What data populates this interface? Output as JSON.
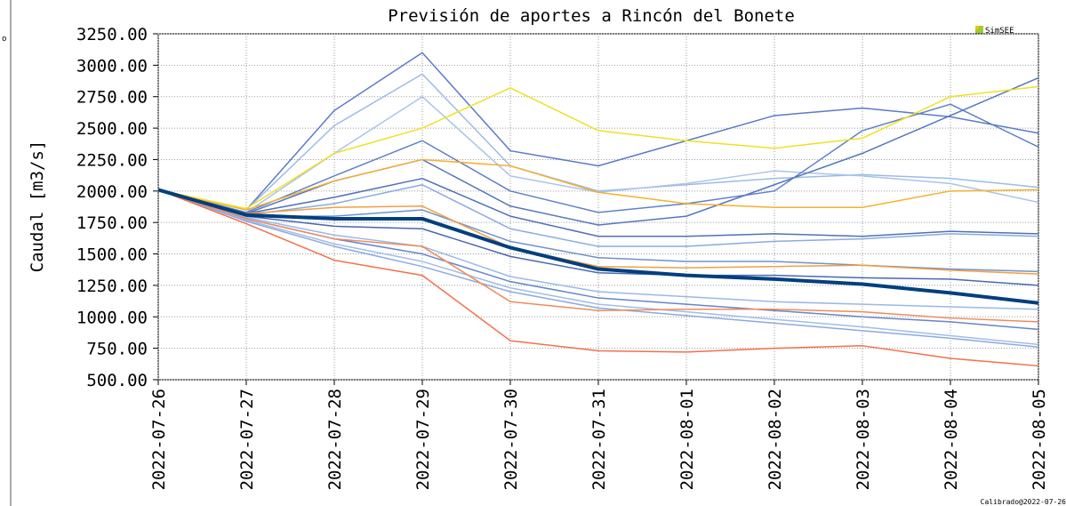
{
  "chart_data": {
    "type": "line",
    "title": "Previsión de aportes a Rincón del Bonete",
    "y_label": "Caudal [m3/s]",
    "logo": "SimSEE",
    "footnote": "Calibrado@2022-07-26",
    "side_text": "o",
    "grid": true,
    "categories": [
      "2022-07-26",
      "2022-07-27",
      "2022-07-28",
      "2022-07-29",
      "2022-07-30",
      "2022-07-31",
      "2022-08-01",
      "2022-08-02",
      "2022-08-03",
      "2022-08-04",
      "2022-08-05"
    ],
    "ylim": [
      500,
      3250
    ],
    "yticks": [
      {
        "value": 500,
        "label": "500.00"
      },
      {
        "value": 750,
        "label": "750.00"
      },
      {
        "value": 1000,
        "label": "1000.00"
      },
      {
        "value": 1250,
        "label": "1250.00"
      },
      {
        "value": 1500,
        "label": "1500.00"
      },
      {
        "value": 1750,
        "label": "1750.00"
      },
      {
        "value": 2000,
        "label": "2000.00"
      },
      {
        "value": 2250,
        "label": "2250.00"
      },
      {
        "value": 2500,
        "label": "2500.00"
      },
      {
        "value": 2750,
        "label": "2750.00"
      },
      {
        "value": 3000,
        "label": "3000.00"
      },
      {
        "value": 3250,
        "label": "3250.00"
      }
    ],
    "series": [
      {
        "color": "#5b7ac8",
        "values": [
          2010,
          1850,
          2640,
          3100,
          2320,
          2200,
          2400,
          2600,
          2660,
          2590,
          2460
        ]
      },
      {
        "color": "#9bbbe8",
        "values": [
          2010,
          1850,
          2520,
          2930,
          2200,
          2000,
          2050,
          2100,
          2130,
          2100,
          2030
        ]
      },
      {
        "color": "#a8c4ec",
        "values": [
          2010,
          1830,
          2300,
          2750,
          2120,
          1990,
          2060,
          2160,
          2120,
          2060,
          1910
        ]
      },
      {
        "color": "#6080c8",
        "values": [
          2010,
          1830,
          2120,
          2400,
          2000,
          1830,
          1900,
          2000,
          2480,
          2690,
          2350
        ]
      },
      {
        "color": "#5577c0",
        "values": [
          2010,
          1820,
          2080,
          2250,
          1880,
          1730,
          1800,
          2050,
          2300,
          2600,
          2900
        ]
      },
      {
        "color": "#5070b8",
        "values": [
          2010,
          1820,
          1950,
          2100,
          1800,
          1640,
          1640,
          1660,
          1640,
          1680,
          1660
        ]
      },
      {
        "color": "#8aaae0",
        "values": [
          2010,
          1810,
          1900,
          2050,
          1700,
          1560,
          1560,
          1600,
          1620,
          1660,
          1640
        ]
      },
      {
        "color": "#7090d0",
        "values": [
          2010,
          1800,
          1800,
          1850,
          1600,
          1470,
          1440,
          1440,
          1410,
          1380,
          1360
        ]
      },
      {
        "color": "#4a68b0",
        "values": [
          2010,
          1800,
          1720,
          1700,
          1480,
          1350,
          1330,
          1330,
          1310,
          1300,
          1250
        ]
      },
      {
        "color": "#9ab8e8",
        "values": [
          2010,
          1790,
          1650,
          1560,
          1320,
          1200,
          1160,
          1120,
          1100,
          1080,
          1060
        ]
      },
      {
        "color": "#6585c8",
        "values": [
          2010,
          1780,
          1620,
          1500,
          1280,
          1150,
          1100,
          1050,
          1000,
          960,
          900
        ]
      },
      {
        "color": "#a0bde8",
        "values": [
          2010,
          1770,
          1580,
          1440,
          1230,
          1100,
          1040,
          980,
          920,
          850,
          780
        ]
      },
      {
        "color": "#8aaae0",
        "values": [
          2010,
          1760,
          1560,
          1400,
          1200,
          1070,
          1010,
          950,
          890,
          830,
          760
        ]
      },
      {
        "color": "#f4704a",
        "values": [
          2010,
          1740,
          1450,
          1330,
          810,
          730,
          720,
          750,
          770,
          670,
          610
        ]
      },
      {
        "color": "#f08a5a",
        "values": [
          2010,
          1780,
          1620,
          1560,
          1120,
          1050,
          1060,
          1060,
          1040,
          990,
          960
        ]
      },
      {
        "color": "#f0a040",
        "values": [
          2010,
          1820,
          1870,
          1880,
          1550,
          1400,
          1390,
          1400,
          1410,
          1370,
          1340
        ]
      },
      {
        "color": "#f5b030",
        "values": [
          2010,
          1850,
          2080,
          2250,
          2200,
          1990,
          1900,
          1870,
          1870,
          2000,
          2010
        ]
      },
      {
        "color": "#f0e020",
        "values": [
          2010,
          1860,
          2300,
          2500,
          2820,
          2480,
          2400,
          2340,
          2420,
          2750,
          2830
        ]
      },
      {
        "color": "#003f7f",
        "values": [
          2010,
          1810,
          1780,
          1780,
          1550,
          1380,
          1330,
          1300,
          1260,
          1190,
          1110
        ]
      }
    ]
  }
}
